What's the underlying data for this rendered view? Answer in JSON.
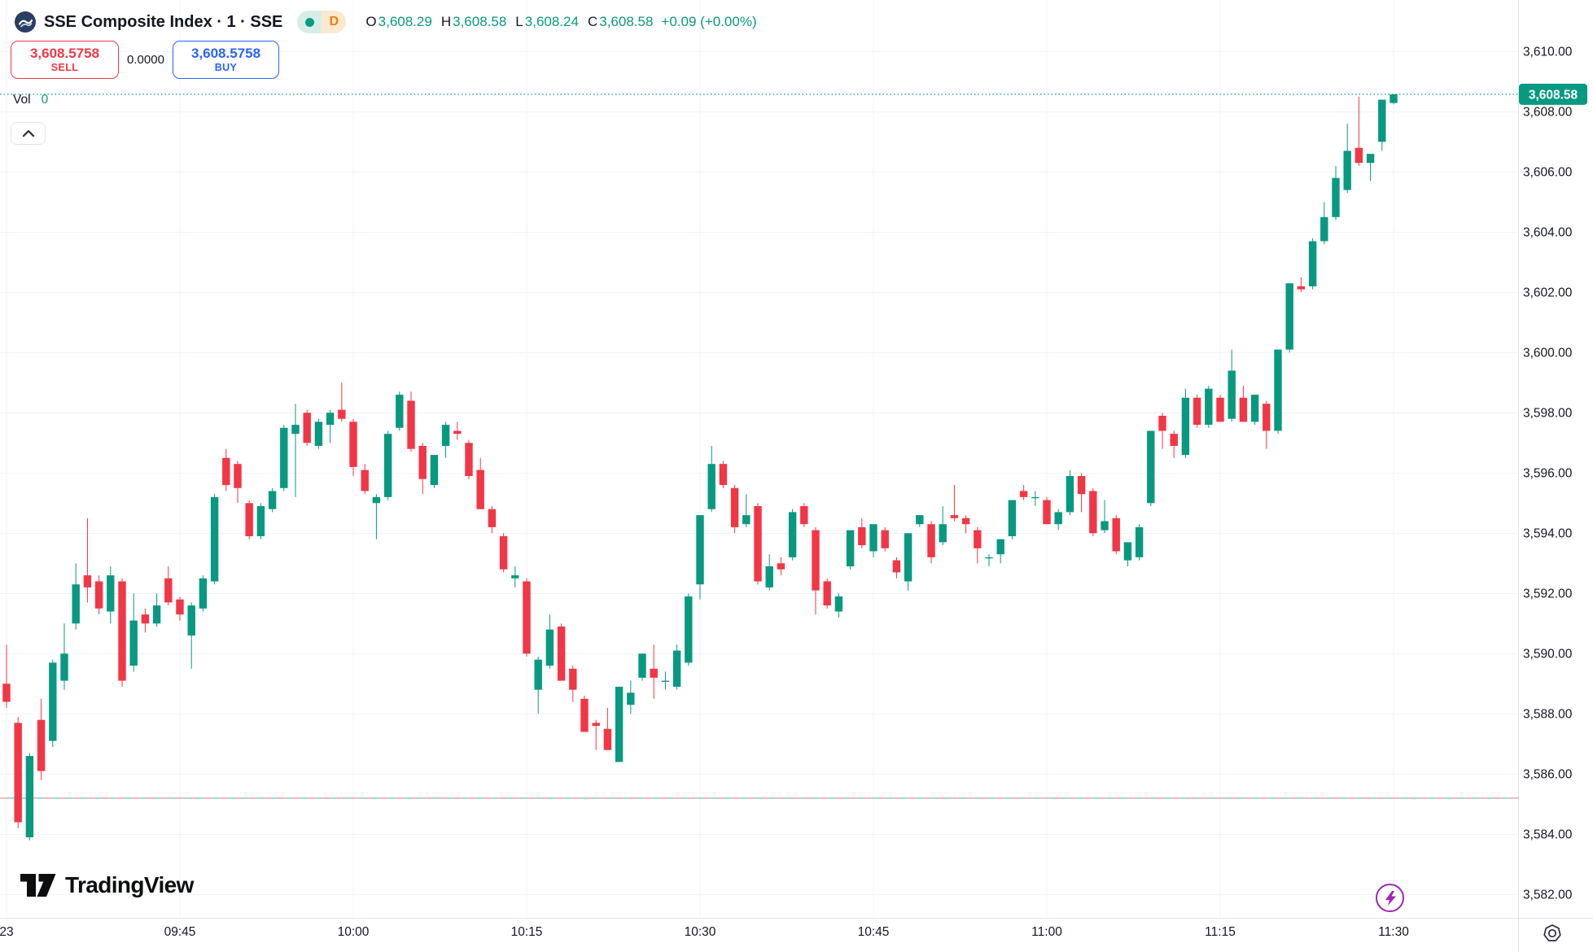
{
  "header": {
    "title": "SSE Composite Index · 1 · SSE",
    "interval_badge": "D",
    "ohlc": {
      "o_label": "O",
      "o": "3,608.29",
      "h_label": "H",
      "h": "3,608.58",
      "l_label": "L",
      "l": "3,608.24",
      "c_label": "C",
      "c": "3,608.58",
      "change": "+0.09 (+0.00%)"
    }
  },
  "trade": {
    "sell_price": "3,608.5758",
    "sell_label": "SELL",
    "spread": "0.0000",
    "buy_price": "3,608.5758",
    "buy_label": "BUY"
  },
  "volume": {
    "label": "Vol",
    "value": "0"
  },
  "watermark": {
    "text": "TradingView"
  },
  "icons": {
    "instrument_logo": "sse-logo-circle",
    "interval_chevron": "chevron-up-icon",
    "lightning": "lightning-icon",
    "gear": "gear-icon"
  },
  "colors": {
    "up": "#089981",
    "down": "#f23645",
    "buy": "#2962ff",
    "sell": "#f23645",
    "grid": "#f0f3fa",
    "axis_border": "#e0e3eb",
    "axis_text": "#131722",
    "order_red": "#f28b82",
    "order_teal": "#63c1cb",
    "badge_d": "#f57c00",
    "accent_purple": "#9c27b0"
  },
  "chart_data": {
    "type": "candlestick",
    "symbol": "SSE Composite Index",
    "exchange": "SSE",
    "interval": "1",
    "ylim": [
      3581.2,
      3610.7
    ],
    "grid": true,
    "current_price": {
      "price": 3608.58,
      "label": "3,608.58"
    },
    "order_line_price": 3585.2,
    "price_axis": {
      "ticks": [
        {
          "price": 3610,
          "label": "3,610.00"
        },
        {
          "price": 3608,
          "label": "3,608.00"
        },
        {
          "price": 3606,
          "label": "3,606.00"
        },
        {
          "price": 3604,
          "label": "3,604.00"
        },
        {
          "price": 3602,
          "label": "3,602.00"
        },
        {
          "price": 3600,
          "label": "3,600.00"
        },
        {
          "price": 3598,
          "label": "3,598.00"
        },
        {
          "price": 3596,
          "label": "3,596.00"
        },
        {
          "price": 3594,
          "label": "3,594.00"
        },
        {
          "price": 3592,
          "label": "3,592.00"
        },
        {
          "price": 3590,
          "label": "3,590.00"
        },
        {
          "price": 3588,
          "label": "3,588.00"
        },
        {
          "price": 3586,
          "label": "3,586.00"
        },
        {
          "price": 3584,
          "label": "3,584.00"
        },
        {
          "price": 3582,
          "label": "3,582.00"
        }
      ]
    },
    "time_axis": {
      "ticks": [
        {
          "index": 0,
          "label": "23"
        },
        {
          "index": 15,
          "label": "09:45"
        },
        {
          "index": 30,
          "label": "10:00"
        },
        {
          "index": 45,
          "label": "10:15"
        },
        {
          "index": 60,
          "label": "10:30"
        },
        {
          "index": 75,
          "label": "10:45"
        },
        {
          "index": 90,
          "label": "11:00"
        },
        {
          "index": 105,
          "label": "11:15"
        },
        {
          "index": 120,
          "label": "11:30"
        }
      ]
    },
    "candles": [
      [
        "09:30",
        3589.0,
        3590.3,
        3588.2,
        3588.4
      ],
      [
        "09:31",
        3587.7,
        3587.9,
        3584.2,
        3584.4
      ],
      [
        "09:32",
        3583.9,
        3586.7,
        3583.8,
        3586.6
      ],
      [
        "09:33",
        3587.8,
        3588.5,
        3585.8,
        3586.1
      ],
      [
        "09:34",
        3587.1,
        3589.8,
        3586.9,
        3589.7
      ],
      [
        "09:35",
        3589.1,
        3591.0,
        3588.8,
        3590.0
      ],
      [
        "09:36",
        3591.0,
        3593.0,
        3590.8,
        3592.3
      ],
      [
        "09:37",
        3592.6,
        3594.5,
        3591.7,
        3592.2
      ],
      [
        "09:38",
        3592.4,
        3592.6,
        3591.3,
        3591.5
      ],
      [
        "09:39",
        3591.4,
        3592.9,
        3591.0,
        3592.6
      ],
      [
        "09:40",
        3592.4,
        3592.5,
        3588.9,
        3589.1
      ],
      [
        "09:41",
        3589.6,
        3592.0,
        3589.4,
        3591.1
      ],
      [
        "09:42",
        3591.3,
        3591.5,
        3590.7,
        3591.0
      ],
      [
        "09:43",
        3591.0,
        3592.0,
        3590.9,
        3591.6
      ],
      [
        "09:44",
        3592.5,
        3592.9,
        3591.6,
        3591.7
      ],
      [
        "09:45",
        3591.8,
        3591.9,
        3591.1,
        3591.3
      ],
      [
        "09:46",
        3590.6,
        3591.7,
        3589.5,
        3591.6
      ],
      [
        "09:47",
        3591.5,
        3592.6,
        3591.4,
        3592.5
      ],
      [
        "09:48",
        3592.4,
        3595.3,
        3592.3,
        3595.2
      ],
      [
        "09:49",
        3596.5,
        3596.8,
        3595.4,
        3595.6
      ],
      [
        "09:50",
        3596.3,
        3596.4,
        3595.0,
        3595.5
      ],
      [
        "09:51",
        3595.0,
        3595.1,
        3593.8,
        3593.9
      ],
      [
        "09:52",
        3593.9,
        3595.0,
        3593.8,
        3594.9
      ],
      [
        "09:53",
        3594.8,
        3595.5,
        3594.7,
        3595.4
      ],
      [
        "09:54",
        3595.5,
        3597.6,
        3595.4,
        3597.5
      ],
      [
        "09:55",
        3597.3,
        3598.3,
        3595.2,
        3597.6
      ],
      [
        "09:56",
        3598.0,
        3598.1,
        3596.9,
        3597.0
      ],
      [
        "09:57",
        3596.9,
        3597.8,
        3596.8,
        3597.7
      ],
      [
        "09:58",
        3597.6,
        3598.1,
        3597.0,
        3598.0
      ],
      [
        "09:59",
        3598.1,
        3599.0,
        3597.7,
        3597.8
      ],
      [
        "10:00",
        3597.7,
        3597.8,
        3595.9,
        3596.2
      ],
      [
        "10:01",
        3596.1,
        3596.3,
        3595.3,
        3595.4
      ],
      [
        "10:02",
        3595.0,
        3595.3,
        3593.8,
        3595.2
      ],
      [
        "10:03",
        3595.2,
        3597.4,
        3595.1,
        3597.3
      ],
      [
        "10:04",
        3597.5,
        3598.7,
        3597.4,
        3598.6
      ],
      [
        "10:05",
        3598.4,
        3598.7,
        3596.7,
        3596.8
      ],
      [
        "10:06",
        3596.9,
        3597.0,
        3595.3,
        3595.8
      ],
      [
        "10:07",
        3595.6,
        3596.6,
        3595.5,
        3596.6
      ],
      [
        "10:08",
        3596.9,
        3597.7,
        3596.5,
        3597.6
      ],
      [
        "10:09",
        3597.4,
        3597.7,
        3597.1,
        3597.3
      ],
      [
        "10:10",
        3597.0,
        3597.1,
        3595.8,
        3595.9
      ],
      [
        "10:11",
        3596.1,
        3596.5,
        3594.8,
        3594.8
      ],
      [
        "10:12",
        3594.8,
        3594.9,
        3594.0,
        3594.2
      ],
      [
        "10:13",
        3593.9,
        3594.0,
        3592.7,
        3592.8
      ],
      [
        "10:14",
        3592.5,
        3592.9,
        3592.2,
        3592.6
      ],
      [
        "10:15",
        3592.4,
        3592.5,
        3589.9,
        3590.0
      ],
      [
        "10:16",
        3588.8,
        3589.9,
        3588.0,
        3589.8
      ],
      [
        "10:17",
        3589.6,
        3591.3,
        3589.5,
        3590.8
      ],
      [
        "10:18",
        3590.9,
        3591.0,
        3589.1,
        3589.1
      ],
      [
        "10:19",
        3589.5,
        3589.6,
        3588.4,
        3588.8
      ],
      [
        "10:20",
        3588.5,
        3588.6,
        3587.4,
        3587.4
      ],
      [
        "10:21",
        3587.7,
        3587.8,
        3586.8,
        3587.6
      ],
      [
        "10:22",
        3587.5,
        3588.2,
        3586.8,
        3586.8
      ],
      [
        "10:23",
        3586.4,
        3588.9,
        3586.4,
        3588.9
      ],
      [
        "10:24",
        3588.3,
        3589.1,
        3588.0,
        3588.7
      ],
      [
        "10:25",
        3589.2,
        3590.0,
        3589.1,
        3590.0
      ],
      [
        "10:26",
        3589.5,
        3590.3,
        3588.5,
        3589.2
      ],
      [
        "10:27",
        3589.1,
        3589.4,
        3588.8,
        3589.1
      ],
      [
        "10:28",
        3588.9,
        3590.3,
        3588.8,
        3590.1
      ],
      [
        "10:29",
        3589.7,
        3592.0,
        3589.6,
        3591.9
      ],
      [
        "10:30",
        3592.3,
        3594.6,
        3591.8,
        3594.6
      ],
      [
        "10:31",
        3594.8,
        3596.9,
        3594.7,
        3596.3
      ],
      [
        "10:32",
        3596.3,
        3596.4,
        3595.5,
        3595.6
      ],
      [
        "10:33",
        3595.5,
        3595.6,
        3594.0,
        3594.2
      ],
      [
        "10:34",
        3594.3,
        3595.3,
        3594.2,
        3594.6
      ],
      [
        "10:35",
        3594.9,
        3595.0,
        3592.3,
        3592.4
      ],
      [
        "10:36",
        3592.2,
        3593.3,
        3592.1,
        3592.9
      ],
      [
        "10:37",
        3593.0,
        3593.2,
        3592.6,
        3592.8
      ],
      [
        "10:38",
        3593.2,
        3594.8,
        3593.1,
        3594.7
      ],
      [
        "10:39",
        3594.9,
        3595.0,
        3594.2,
        3594.3
      ],
      [
        "10:40",
        3594.1,
        3594.2,
        3591.3,
        3592.1
      ],
      [
        "10:41",
        3592.4,
        3592.5,
        3591.5,
        3591.6
      ],
      [
        "10:42",
        3591.4,
        3592.0,
        3591.2,
        3591.9
      ],
      [
        "10:43",
        3592.9,
        3594.1,
        3592.8,
        3594.1
      ],
      [
        "10:44",
        3594.2,
        3594.5,
        3593.5,
        3593.6
      ],
      [
        "10:45",
        3593.4,
        3594.3,
        3593.2,
        3594.3
      ],
      [
        "10:46",
        3594.1,
        3594.2,
        3593.4,
        3593.5
      ],
      [
        "10:47",
        3593.1,
        3593.2,
        3592.5,
        3592.7
      ],
      [
        "10:48",
        3592.4,
        3594.0,
        3592.1,
        3594.0
      ],
      [
        "10:49",
        3594.3,
        3594.6,
        3594.2,
        3594.6
      ],
      [
        "10:50",
        3594.3,
        3594.4,
        3593.0,
        3593.2
      ],
      [
        "10:51",
        3593.7,
        3594.9,
        3593.6,
        3594.3
      ],
      [
        "10:52",
        3594.6,
        3595.6,
        3594.4,
        3594.5
      ],
      [
        "10:53",
        3594.5,
        3594.6,
        3594.0,
        3594.3
      ],
      [
        "10:54",
        3594.1,
        3594.2,
        3593.0,
        3593.5
      ],
      [
        "10:55",
        3593.2,
        3593.3,
        3592.9,
        3593.2
      ],
      [
        "10:56",
        3593.3,
        3593.8,
        3593.0,
        3593.8
      ],
      [
        "10:57",
        3593.9,
        3595.1,
        3593.8,
        3595.1
      ],
      [
        "10:58",
        3595.4,
        3595.6,
        3595.1,
        3595.2
      ],
      [
        "10:59",
        3595.2,
        3595.4,
        3594.9,
        3595.2
      ],
      [
        "11:00",
        3595.1,
        3595.2,
        3594.3,
        3594.3
      ],
      [
        "11:01",
        3594.3,
        3594.8,
        3594.1,
        3594.7
      ],
      [
        "11:02",
        3594.7,
        3596.1,
        3594.6,
        3595.9
      ],
      [
        "11:03",
        3595.9,
        3596.0,
        3594.7,
        3595.3
      ],
      [
        "11:04",
        3595.4,
        3595.5,
        3593.9,
        3594.0
      ],
      [
        "11:05",
        3594.1,
        3595.1,
        3594.0,
        3594.4
      ],
      [
        "11:06",
        3594.5,
        3594.6,
        3593.3,
        3593.4
      ],
      [
        "11:07",
        3593.1,
        3593.7,
        3592.9,
        3593.7
      ],
      [
        "11:08",
        3593.2,
        3594.3,
        3593.1,
        3594.2
      ],
      [
        "11:09",
        3595.0,
        3597.4,
        3594.9,
        3597.4
      ],
      [
        "11:10",
        3597.9,
        3598.0,
        3596.8,
        3597.4
      ],
      [
        "11:11",
        3597.3,
        3597.4,
        3596.5,
        3596.9
      ],
      [
        "11:12",
        3596.6,
        3598.8,
        3596.5,
        3598.5
      ],
      [
        "11:13",
        3598.5,
        3598.6,
        3597.5,
        3597.6
      ],
      [
        "11:14",
        3597.6,
        3598.9,
        3597.5,
        3598.8
      ],
      [
        "11:15",
        3598.5,
        3598.6,
        3597.7,
        3597.7
      ],
      [
        "11:16",
        3597.8,
        3600.1,
        3597.7,
        3599.4
      ],
      [
        "11:17",
        3598.5,
        3598.9,
        3597.7,
        3597.7
      ],
      [
        "11:18",
        3597.7,
        3598.6,
        3597.6,
        3598.6
      ],
      [
        "11:19",
        3598.3,
        3598.4,
        3596.8,
        3597.4
      ],
      [
        "11:20",
        3597.4,
        3600.1,
        3597.3,
        3600.1
      ],
      [
        "11:21",
        3600.1,
        3602.3,
        3600.0,
        3602.3
      ],
      [
        "11:22",
        3602.2,
        3602.5,
        3602.0,
        3602.1
      ],
      [
        "11:23",
        3602.2,
        3603.8,
        3602.1,
        3603.7
      ],
      [
        "11:24",
        3603.7,
        3605.0,
        3603.6,
        3604.5
      ],
      [
        "11:25",
        3604.5,
        3606.2,
        3604.4,
        3605.8
      ],
      [
        "11:26",
        3605.4,
        3607.6,
        3605.3,
        3606.7
      ],
      [
        "11:27",
        3606.8,
        3608.5,
        3606.2,
        3606.3
      ],
      [
        "11:28",
        3606.3,
        3606.6,
        3605.7,
        3606.6
      ],
      [
        "11:29",
        3607.0,
        3608.4,
        3606.7,
        3608.4
      ],
      [
        "11:30",
        3608.29,
        3608.58,
        3608.24,
        3608.58
      ]
    ]
  }
}
